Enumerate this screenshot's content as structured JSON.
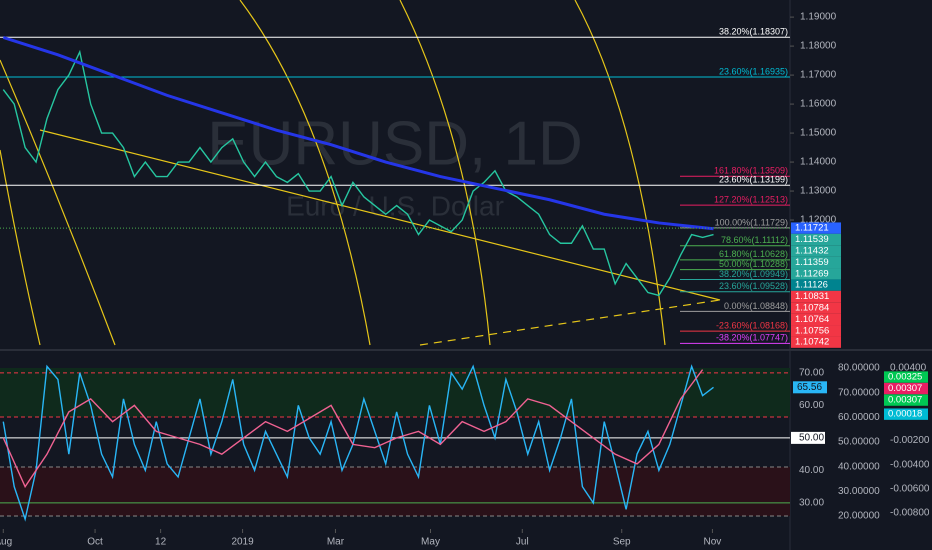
{
  "chart_data": [
    {
      "type": "line",
      "title": "EURUSD, 1D",
      "subtitle": "Euro / U.S. Dollar",
      "xlim": [
        -0.3,
        72
      ],
      "xticks": [
        {
          "value": 0,
          "label": "Aug"
        },
        {
          "value": 8.4,
          "label": "Oct"
        },
        {
          "value": 14.4,
          "label": "12"
        },
        {
          "value": 21.9,
          "label": "2019"
        },
        {
          "value": 30.4,
          "label": "Mar"
        },
        {
          "value": 39.1,
          "label": "May"
        },
        {
          "value": 47.5,
          "label": "Jul"
        },
        {
          "value": 56.6,
          "label": "Sep"
        },
        {
          "value": 64.9,
          "label": "Nov"
        }
      ],
      "ylim": [
        1.0769,
        1.1959
      ],
      "yticks": [
        {
          "value": 1.19,
          "label": "1.19000"
        },
        {
          "value": 1.18,
          "label": "1.18000"
        },
        {
          "value": 1.17,
          "label": "1.17000"
        },
        {
          "value": 1.16,
          "label": "1.16000"
        },
        {
          "value": 1.15,
          "label": "1.15000"
        },
        {
          "value": 1.14,
          "label": "1.14000"
        },
        {
          "value": 1.13,
          "label": "1.13000"
        },
        {
          "value": 1.12,
          "label": "1.12000"
        }
      ],
      "series": [
        {
          "name": "EURUSD",
          "color": "#26c6a0",
          "x": [
            0,
            1,
            2,
            3,
            4,
            5,
            6,
            7,
            8,
            9,
            10,
            11,
            12,
            13,
            14,
            15,
            16,
            17,
            18,
            19,
            20,
            21,
            22,
            23,
            24,
            25,
            26,
            27,
            28,
            29,
            30,
            31,
            32,
            33,
            34,
            35,
            36,
            37,
            38,
            39,
            40,
            41,
            42,
            43,
            44,
            45,
            46,
            47,
            48,
            49,
            50,
            51,
            52,
            53,
            54,
            55,
            56,
            57,
            58,
            59,
            60,
            61,
            62,
            63,
            64,
            65
          ],
          "values": [
            1.165,
            1.16,
            1.145,
            1.14,
            1.155,
            1.165,
            1.17,
            1.178,
            1.16,
            1.15,
            1.15,
            1.145,
            1.135,
            1.14,
            1.135,
            1.135,
            1.14,
            1.14,
            1.145,
            1.14,
            1.145,
            1.148,
            1.14,
            1.135,
            1.14,
            1.135,
            1.133,
            1.136,
            1.13,
            1.13,
            1.135,
            1.125,
            1.133,
            1.128,
            1.125,
            1.122,
            1.125,
            1.122,
            1.115,
            1.12,
            1.118,
            1.116,
            1.12,
            1.13,
            1.133,
            1.137,
            1.13,
            1.128,
            1.125,
            1.122,
            1.115,
            1.112,
            1.112,
            1.118,
            1.11,
            1.11,
            1.098,
            1.105,
            1.1,
            1.095,
            1.094,
            1.1,
            1.108,
            1.115,
            1.114,
            1.115
          ]
        },
        {
          "color": "#2536e8",
          "x": [
            0,
            5,
            10,
            15,
            20,
            25,
            30,
            35,
            40,
            45,
            50,
            55,
            60,
            65
          ],
          "values": [
            1.183,
            1.177,
            1.17,
            1.163,
            1.157,
            1.151,
            1.146,
            1.14,
            1.135,
            1.131,
            1.127,
            1.122,
            1.119,
            1.117
          ]
        }
      ],
      "levels": [
        {
          "value": 1.18307,
          "label": "38.20%(1.18307)",
          "color": "#ffffff",
          "full": true
        },
        {
          "value": 1.16935,
          "label": "23.60%(1.16935)",
          "color": "#00bcd4",
          "full": true
        },
        {
          "value": 1.13509,
          "label": "161.80%(1.13509)",
          "color": "#e91e63",
          "full": false
        },
        {
          "value": 1.13199,
          "label": "23.60%(1.13199)",
          "color": "#ffffff",
          "full": true
        },
        {
          "value": 1.12513,
          "label": "127.20%(1.12513)",
          "color": "#e91e63",
          "full": false
        },
        {
          "value": 1.11729,
          "label": "100.00%(1.11729)",
          "color": "#9e9e9e",
          "full": false
        },
        {
          "value": 1.11112,
          "label": "78.60%(1.11112)",
          "color": "#4caf50",
          "full": false
        },
        {
          "value": 1.10628,
          "label": "61.80%(1.10628)",
          "color": "#4caf50",
          "full": false
        },
        {
          "value": 1.10288,
          "label": "50.00%(1.10288)",
          "color": "#4caf50",
          "full": false
        },
        {
          "value": 1.09949,
          "label": "38.20%(1.09949)",
          "color": "#26a69a",
          "full": false
        },
        {
          "value": 1.09528,
          "label": "23.60%(1.09528)",
          "color": "#26a69a",
          "full": false
        },
        {
          "value": 1.08848,
          "label": "0.00%(1.08848)",
          "color": "#9e9e9e",
          "full": false
        },
        {
          "value": 1.08168,
          "label": "-23.60%(1.08168)",
          "color": "#f23645",
          "full": false
        },
        {
          "value": 1.07747,
          "label": "-38.20%(1.07747)",
          "color": "#e040fb",
          "full": false
        }
      ],
      "price_labels": [
        {
          "value": 1.11721,
          "color": "#2962ff"
        },
        {
          "value": 1.11539,
          "color": "#26a69a"
        },
        {
          "value": 1.11432,
          "color": "#26a69a"
        },
        {
          "value": 1.11359,
          "color": "#26a69a"
        },
        {
          "value": 1.11269,
          "color": "#26a69a"
        },
        {
          "value": 1.11126,
          "color": "#00838f"
        },
        {
          "value": 1.10831,
          "color": "#f23645"
        },
        {
          "value": 1.10784,
          "color": "#f23645"
        },
        {
          "value": 1.10764,
          "color": "#f23645"
        },
        {
          "value": 1.10756,
          "color": "#f23645"
        },
        {
          "value": 1.10742,
          "color": "#f23645"
        }
      ]
    },
    {
      "type": "line",
      "ylim": [
        23.2,
        75.5
      ],
      "yticks": [
        {
          "value": 70,
          "label": "70.00"
        },
        {
          "value": 60,
          "label": "60.00"
        },
        {
          "value": 50,
          "label": "50.00"
        },
        {
          "value": 40,
          "label": "40.00"
        },
        {
          "value": 30,
          "label": "30.00"
        }
      ],
      "y2lim": [
        16.35,
        85.27
      ],
      "y2ticks": [
        {
          "value": 80,
          "label": "80.00000"
        },
        {
          "value": 70,
          "label": "70.00000"
        },
        {
          "value": 60,
          "label": "60.00000"
        },
        {
          "value": 50,
          "label": "50.00000"
        },
        {
          "value": 40,
          "label": "40.00000"
        },
        {
          "value": 30,
          "label": "30.00000"
        },
        {
          "value": 20,
          "label": "20.00000"
        }
      ],
      "y3lim": [
        -0.008993,
        0.005076
      ],
      "y3ticks": [
        {
          "value": 0.004,
          "label": "0.00400"
        },
        {
          "value": -0.002,
          "label": "-0.00200"
        },
        {
          "value": -0.004,
          "label": "-0.00400"
        },
        {
          "value": -0.006,
          "label": "-0.00600"
        },
        {
          "value": -0.008,
          "label": "-0.00800"
        }
      ],
      "y3_markers": [
        {
          "value": 0.00325,
          "color": "#00c853"
        },
        {
          "value": 0.00307,
          "color": "#e91e63"
        },
        {
          "value": 0.00307,
          "color": "#00c853"
        },
        {
          "value": 0.00018,
          "color": "#00bcd4"
        }
      ],
      "hlines": [
        {
          "value": 70,
          "color": "#f23645",
          "dashed": true
        },
        {
          "value": 50,
          "color": "#ffffff",
          "dashed": false
        },
        {
          "value": 30,
          "color": "#4caf50",
          "dashed": false
        }
      ],
      "series": [
        {
          "color": "#29b6f6",
          "x": [
            0,
            1,
            2,
            3,
            4,
            5,
            6,
            7,
            8,
            9,
            10,
            11,
            12,
            13,
            14,
            15,
            16,
            17,
            18,
            19,
            20,
            21,
            22,
            23,
            24,
            25,
            26,
            27,
            28,
            29,
            30,
            31,
            32,
            33,
            34,
            35,
            36,
            37,
            38,
            39,
            40,
            41,
            42,
            43,
            44,
            45,
            46,
            47,
            48,
            49,
            50,
            51,
            52,
            53,
            54,
            55,
            56,
            57,
            58,
            59,
            60,
            61,
            62,
            63,
            64,
            65
          ],
          "values": [
            55,
            35,
            25,
            40,
            72,
            68,
            45,
            70,
            60,
            45,
            38,
            62,
            48,
            40,
            55,
            42,
            38,
            50,
            62,
            45,
            55,
            68,
            48,
            40,
            52,
            45,
            38,
            60,
            50,
            45,
            55,
            40,
            48,
            62,
            52,
            42,
            58,
            45,
            38,
            60,
            48,
            70,
            65,
            72,
            60,
            50,
            68,
            58,
            45,
            55,
            40,
            50,
            62,
            35,
            30,
            55,
            42,
            28,
            45,
            52,
            40,
            48,
            60,
            72,
            63,
            65.56
          ]
        },
        {
          "color": "#f06292",
          "x": [
            0,
            2,
            4,
            6,
            8,
            10,
            12,
            14,
            16,
            18,
            20,
            22,
            24,
            26,
            28,
            30,
            32,
            34,
            36,
            38,
            40,
            42,
            44,
            46,
            48,
            50,
            52,
            54,
            56,
            58,
            60,
            62,
            64
          ],
          "values": [
            50,
            35,
            45,
            58,
            62,
            55,
            60,
            52,
            50,
            48,
            45,
            50,
            55,
            52,
            56,
            60,
            48,
            47,
            50,
            52,
            48,
            55,
            52,
            55,
            62,
            60,
            55,
            50,
            45,
            42,
            48,
            62,
            71
          ]
        }
      ]
    }
  ]
}
